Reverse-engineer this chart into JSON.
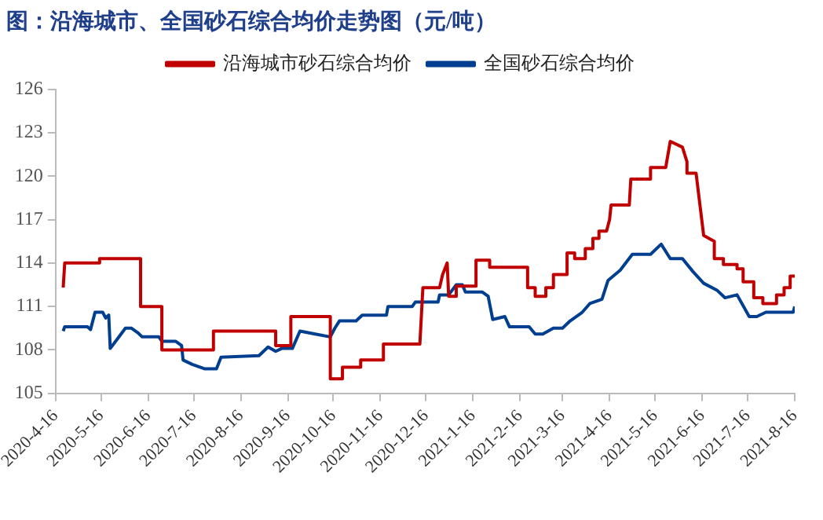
{
  "chart_data": {
    "type": "line",
    "title": "图：沿海城市、全国砂石综合均价走势图（元/吨）",
    "legend": "top",
    "grid": false,
    "marker": "none",
    "line_style": "solid",
    "xlim": [
      "2020-04-16",
      "2021-08-16"
    ],
    "xticks": [
      {
        "value": "2020-04-16",
        "label": "2020-4-16"
      },
      {
        "value": "2020-05-16",
        "label": "2020-5-16"
      },
      {
        "value": "2020-06-16",
        "label": "2020-6-16"
      },
      {
        "value": "2020-07-16",
        "label": "2020-7-16"
      },
      {
        "value": "2020-08-16",
        "label": "2020-8-16"
      },
      {
        "value": "2020-09-16",
        "label": "2020-9-16"
      },
      {
        "value": "2020-10-16",
        "label": "2020-10-16"
      },
      {
        "value": "2020-11-16",
        "label": "2020-11-16"
      },
      {
        "value": "2020-12-16",
        "label": "2020-12-16"
      },
      {
        "value": "2021-01-16",
        "label": "2021-1-16"
      },
      {
        "value": "2021-02-16",
        "label": "2021-2-16"
      },
      {
        "value": "2021-03-16",
        "label": "2021-3-16"
      },
      {
        "value": "2021-04-16",
        "label": "2021-4-16"
      },
      {
        "value": "2021-05-16",
        "label": "2021-5-16"
      },
      {
        "value": "2021-06-16",
        "label": "2021-6-16"
      },
      {
        "value": "2021-07-16",
        "label": "2021-7-16"
      },
      {
        "value": "2021-08-16",
        "label": "2021-8-16"
      }
    ],
    "ylim": [
      105,
      126
    ],
    "yticks": [
      105,
      108,
      111,
      114,
      117,
      120,
      123,
      126
    ],
    "series": [
      {
        "name": "沿海城市砂石综合均价",
        "color": "#c00000",
        "x": [
          "2020-04-21",
          "2020-04-22",
          "2020-05-15",
          "2020-05-15",
          "2020-06-11",
          "2020-06-11",
          "2020-06-25",
          "2020-06-25",
          "2020-07-29",
          "2020-07-29",
          "2020-09-08",
          "2020-09-08",
          "2020-09-18",
          "2020-09-18",
          "2020-10-14",
          "2020-10-14",
          "2020-10-22",
          "2020-10-22",
          "2020-11-03",
          "2020-11-03",
          "2020-11-18",
          "2020-11-18",
          "2020-12-12",
          "2020-12-14",
          "2020-12-25",
          "2020-12-27",
          "2020-12-30",
          "2020-12-31",
          "2021-01-05",
          "2021-01-05",
          "2021-01-18",
          "2021-01-18",
          "2021-01-27",
          "2021-01-27",
          "2021-02-21",
          "2021-02-21",
          "2021-02-26",
          "2021-02-26",
          "2021-03-05",
          "2021-03-05",
          "2021-03-10",
          "2021-03-10",
          "2021-03-19",
          "2021-03-19",
          "2021-03-24",
          "2021-03-24",
          "2021-03-31",
          "2021-03-31",
          "2021-04-05",
          "2021-04-05",
          "2021-04-09",
          "2021-04-09",
          "2021-04-14",
          "2021-04-16",
          "2021-04-17",
          "2021-04-29",
          "2021-04-30",
          "2021-05-13",
          "2021-05-13",
          "2021-05-23",
          "2021-05-26",
          "2021-06-03",
          "2021-06-06",
          "2021-06-06",
          "2021-06-12",
          "2021-06-17",
          "2021-06-24",
          "2021-06-24",
          "2021-06-30",
          "2021-06-30",
          "2021-07-09",
          "2021-07-09",
          "2021-07-13",
          "2021-07-13",
          "2021-07-20",
          "2021-07-20",
          "2021-07-26",
          "2021-07-26",
          "2021-08-04",
          "2021-08-04",
          "2021-08-09",
          "2021-08-09",
          "2021-08-13",
          "2021-08-13",
          "2021-08-16"
        ],
        "values": [
          112.3,
          114,
          114,
          114.3,
          114.3,
          111,
          111,
          108,
          108,
          109.3,
          109.3,
          108.3,
          108.3,
          110.3,
          110.3,
          106,
          106,
          106.8,
          106.8,
          107.3,
          107.3,
          108.4,
          108.4,
          112.3,
          112.3,
          113.2,
          114,
          111.7,
          111.7,
          112.4,
          112.4,
          114.2,
          114.2,
          113.7,
          113.7,
          112.3,
          112.3,
          111.7,
          111.7,
          112.3,
          112.3,
          113.2,
          113.2,
          114.7,
          114.7,
          114.3,
          114.3,
          115,
          115,
          115.7,
          115.7,
          116.2,
          116.2,
          117,
          118,
          118,
          119.8,
          119.8,
          120.6,
          120.6,
          122.4,
          122,
          121,
          120.2,
          120.2,
          115.9,
          115.5,
          114.3,
          114.3,
          113.9,
          113.9,
          113.6,
          113.6,
          112.7,
          112.7,
          111.6,
          111.6,
          111.2,
          111.2,
          111.8,
          111.8,
          112.3,
          112.3,
          113.1,
          113.1
        ]
      },
      {
        "name": "全国砂石综合均价",
        "color": "#003f8f",
        "x": [
          "2020-04-21",
          "2020-04-22",
          "2020-05-07",
          "2020-05-09",
          "2020-05-12",
          "2020-05-17",
          "2020-05-19",
          "2020-05-21",
          "2020-05-22",
          "2020-05-27",
          "2020-06-01",
          "2020-06-05",
          "2020-06-09",
          "2020-06-12",
          "2020-06-23",
          "2020-06-25",
          "2020-07-04",
          "2020-07-08",
          "2020-07-09",
          "2020-07-15",
          "2020-07-23",
          "2020-07-31",
          "2020-08-03",
          "2020-08-28",
          "2020-09-03",
          "2020-09-08",
          "2020-09-12",
          "2020-09-19",
          "2020-09-24",
          "2020-10-04",
          "2020-10-14",
          "2020-10-17",
          "2020-10-20",
          "2020-10-31",
          "2020-11-04",
          "2020-11-20",
          "2020-11-21",
          "2020-12-07",
          "2020-12-09",
          "2020-12-24",
          "2020-12-25",
          "2020-12-31",
          "2021-01-05",
          "2021-01-09",
          "2021-01-11",
          "2021-01-22",
          "2021-01-26",
          "2021-01-29",
          "2021-02-06",
          "2021-02-09",
          "2021-02-22",
          "2021-02-26",
          "2021-03-03",
          "2021-03-10",
          "2021-03-16",
          "2021-03-21",
          "2021-03-29",
          "2021-04-03",
          "2021-04-11",
          "2021-04-15",
          "2021-04-23",
          "2021-05-01",
          "2021-05-13",
          "2021-05-20",
          "2021-05-26",
          "2021-06-03",
          "2021-06-10",
          "2021-06-17",
          "2021-06-26",
          "2021-07-01",
          "2021-07-09",
          "2021-07-17",
          "2021-07-22",
          "2021-07-28",
          "2021-08-15",
          "2021-08-16"
        ],
        "values": [
          109.3,
          109.6,
          109.6,
          109.4,
          110.6,
          110.6,
          110.2,
          110.4,
          108.1,
          108.8,
          109.5,
          109.5,
          109.2,
          108.9,
          108.9,
          108.6,
          108.6,
          108.3,
          107.3,
          107,
          106.7,
          106.7,
          107.5,
          107.6,
          108.2,
          107.9,
          108.1,
          108.1,
          109.3,
          109.1,
          108.9,
          109.5,
          110,
          110,
          110.4,
          110.4,
          111,
          111,
          111.3,
          111.3,
          111.8,
          111.8,
          112.5,
          112.5,
          112,
          112,
          111.7,
          110.1,
          110.3,
          109.6,
          109.6,
          109.1,
          109.1,
          109.5,
          109.5,
          110,
          110.6,
          111.2,
          111.5,
          112.8,
          113.5,
          114.6,
          114.6,
          115.3,
          114.3,
          114.3,
          113.4,
          112.6,
          112.1,
          111.6,
          111.8,
          110.3,
          110.3,
          110.6,
          110.6,
          111
        ]
      }
    ]
  }
}
